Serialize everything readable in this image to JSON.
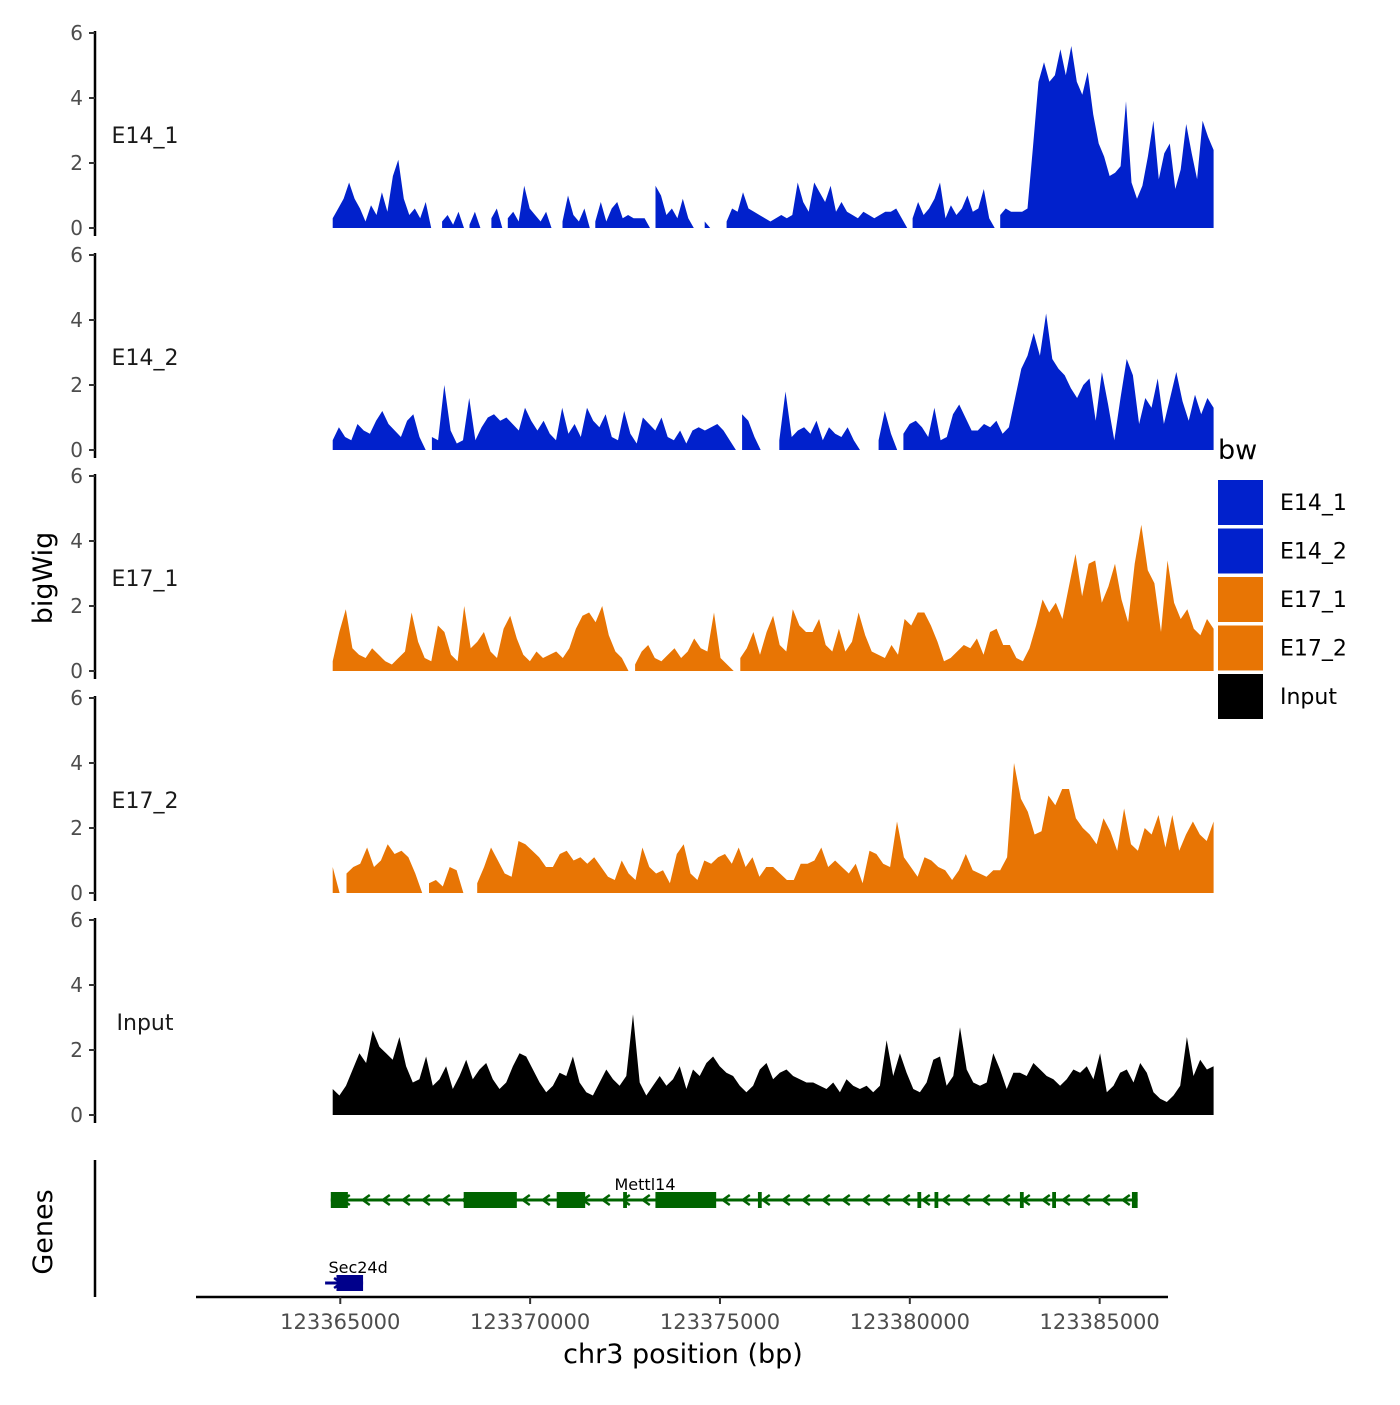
{
  "chart_data": {
    "type": "area",
    "title": "",
    "ylabel": "bigWig",
    "xlabel": "chr3 position (bp)",
    "ylim": [
      0,
      6
    ],
    "yticks": [
      0,
      2,
      4,
      6
    ],
    "xlim": [
      123361200,
      123386800
    ],
    "xticks": [
      123365000,
      123370000,
      123375000,
      123380000,
      123385000
    ],
    "xtick_labels": [
      "123365000",
      "123370000",
      "123375000",
      "123380000",
      "123385000"
    ],
    "signal_x_range": [
      123364800,
      123388000
    ],
    "legend": {
      "title": "bw",
      "placement": "right",
      "entries": [
        {
          "name": "E14_1",
          "color": "#0121CC"
        },
        {
          "name": "E14_2",
          "color": "#0121CC"
        },
        {
          "name": "E17_1",
          "color": "#E87504"
        },
        {
          "name": "E17_2",
          "color": "#E87504"
        },
        {
          "name": "Input",
          "color": "#000000"
        }
      ]
    },
    "series": [
      {
        "name": "E14_1",
        "color": "#0121CC",
        "values": [
          0.3,
          0.6,
          0.9,
          1.4,
          0.9,
          0.6,
          0.2,
          0.7,
          0.4,
          1.1,
          0.5,
          1.6,
          2.1,
          0.9,
          0.4,
          0.6,
          0.3,
          0.8,
          0,
          0,
          0.2,
          0.4,
          0.1,
          0.5,
          0,
          0.1,
          0.5,
          0,
          0,
          0.3,
          0.6,
          0,
          0.3,
          0.5,
          0.2,
          1.3,
          0.6,
          0.4,
          0.2,
          0.5,
          0,
          0,
          0.2,
          1,
          0.4,
          0.2,
          0.6,
          0,
          0.2,
          0.8,
          0.2,
          0.6,
          0.8,
          0.3,
          0.4,
          0.3,
          0.3,
          0.3,
          0,
          1.3,
          1,
          0.4,
          0.6,
          0.3,
          0.9,
          0.3,
          0,
          0,
          0.2,
          0,
          0,
          0,
          0.2,
          0.6,
          0.5,
          1.1,
          0.6,
          0.5,
          0.4,
          0.3,
          0.2,
          0.3,
          0.4,
          0.3,
          0.4,
          1.4,
          0.8,
          0.5,
          1.4,
          1.1,
          0.8,
          1.3,
          0.5,
          0.8,
          0.5,
          0.4,
          0.3,
          0.5,
          0.4,
          0.3,
          0.4,
          0.5,
          0.5,
          0.6,
          0.3,
          0,
          0.3,
          0.8,
          0.4,
          0.6,
          0.9,
          1.4,
          0.3,
          0.7,
          0.4,
          0.6,
          1,
          0.5,
          0.6,
          1.2,
          0.3,
          0,
          0.4,
          0.6,
          0.5,
          0.5,
          0.5,
          0.6,
          2.5,
          4.5,
          5.1,
          4.5,
          4.7,
          5.5,
          4.7,
          5.6,
          4.5,
          4.1,
          4.8,
          3.5,
          2.6,
          2.2,
          1.6,
          1.7,
          1.9,
          3.9,
          1.4,
          0.9,
          1.3,
          2.2,
          3.3,
          1.5,
          2.3,
          2.6,
          1.2,
          1.8,
          3.2,
          2.3,
          1.5,
          3.3,
          2.8,
          2.4
        ]
      },
      {
        "name": "E14_2",
        "color": "#0121CC",
        "values": [
          0.3,
          0.7,
          0.4,
          0.3,
          0.8,
          0.6,
          0.5,
          0.9,
          1.2,
          0.8,
          0.6,
          0.4,
          0.9,
          1.1,
          0.4,
          0,
          0.4,
          0.3,
          2,
          0.6,
          0.2,
          0.3,
          1.6,
          0.3,
          0.7,
          1,
          1.1,
          0.9,
          1,
          0.8,
          0.6,
          1.3,
          0.9,
          0.6,
          0.9,
          0.5,
          0.3,
          1.3,
          0.5,
          0.8,
          0.4,
          1.3,
          0.9,
          0.7,
          1.1,
          0.4,
          0.3,
          1.2,
          0.5,
          0.2,
          1,
          0.8,
          0.6,
          1,
          0.4,
          0.3,
          0.6,
          0.2,
          0.6,
          0.7,
          0.6,
          0.7,
          0.8,
          0.6,
          0.3,
          0,
          1.1,
          0.9,
          0.4,
          0,
          0,
          0,
          0.3,
          1.8,
          0.4,
          0.6,
          0.7,
          0.5,
          0.9,
          0.3,
          0.7,
          0.5,
          0.4,
          0.7,
          0.3,
          0,
          0,
          0,
          0.3,
          1.2,
          0.5,
          0,
          0.5,
          0.8,
          0.9,
          0.7,
          0.4,
          1.3,
          0.3,
          0.4,
          1.1,
          1.4,
          1,
          0.6,
          0.6,
          0.8,
          0.7,
          0.9,
          0.5,
          0.7,
          1.6,
          2.5,
          2.9,
          3.6,
          2.9,
          4.2,
          2.8,
          2.5,
          2.3,
          1.9,
          1.6,
          2,
          2.2,
          0.9,
          2.4,
          1.4,
          0.3,
          1.6,
          2.8,
          2.3,
          0.8,
          1.6,
          1.3,
          2.2,
          0.8,
          1.6,
          2.4,
          1.5,
          0.9,
          1.7,
          1.1,
          1.6,
          1.3
        ]
      },
      {
        "name": "E17_1",
        "color": "#E87504",
        "values": [
          0.3,
          1.2,
          1.9,
          0.7,
          0.5,
          0.4,
          0.7,
          0.5,
          0.3,
          0.2,
          0.4,
          0.6,
          1.8,
          0.9,
          0.4,
          0.3,
          1.4,
          1.2,
          0.5,
          0.3,
          2,
          0.7,
          0.9,
          1.2,
          0.6,
          0.4,
          1.3,
          1.7,
          1,
          0.5,
          0.3,
          0.6,
          0.4,
          0.5,
          0.6,
          0.4,
          0.7,
          1.3,
          1.7,
          1.8,
          1.5,
          2,
          1.1,
          0.6,
          0.4,
          0,
          0.2,
          0.6,
          0.8,
          0.4,
          0.3,
          0.5,
          0.7,
          0.4,
          0.6,
          1,
          0.7,
          0.6,
          1.8,
          0.4,
          0.2,
          0,
          0.4,
          0.7,
          1.2,
          0.5,
          1.2,
          1.7,
          0.8,
          0.6,
          1.9,
          1.4,
          1.2,
          1.2,
          1.6,
          0.8,
          0.6,
          1.3,
          0.6,
          0.9,
          1.8,
          1.1,
          0.6,
          0.5,
          0.4,
          0.8,
          0.5,
          1.6,
          1.4,
          1.8,
          1.8,
          1.4,
          0.9,
          0.3,
          0.4,
          0.6,
          0.8,
          0.7,
          1,
          0.5,
          1.2,
          1.3,
          0.8,
          0.8,
          0.4,
          0.3,
          0.7,
          1.4,
          2.2,
          1.8,
          2.1,
          1.6,
          2.6,
          3.6,
          2.3,
          3.3,
          3.4,
          2.1,
          2.6,
          3.3,
          2.2,
          1.5,
          3.3,
          4.5,
          3.1,
          2.7,
          1.2,
          3.4,
          2.1,
          1.6,
          1.9,
          1.3,
          1.1,
          1.6,
          1.3
        ]
      },
      {
        "name": "E17_2",
        "color": "#E87504",
        "values": [
          0.8,
          0,
          0.6,
          0.8,
          0.9,
          1.4,
          0.8,
          1,
          1.5,
          1.2,
          1.3,
          1.1,
          0.6,
          0,
          0.3,
          0.4,
          0.2,
          0.8,
          0.7,
          0,
          0,
          0.3,
          0.8,
          1.4,
          1,
          0.6,
          0.5,
          1.6,
          1.5,
          1.3,
          1.1,
          0.8,
          0.8,
          1.2,
          1.3,
          1,
          1.1,
          0.9,
          1.1,
          0.8,
          0.5,
          0.4,
          1,
          0.6,
          0.4,
          1.4,
          0.8,
          0.6,
          0.7,
          0.3,
          1.2,
          1.5,
          0.6,
          0.4,
          1,
          0.9,
          1.1,
          1.2,
          0.9,
          1.4,
          0.8,
          1.1,
          0.5,
          0.8,
          0.8,
          0.6,
          0.4,
          0.4,
          0.9,
          0.9,
          1,
          1.4,
          0.8,
          1,
          0.8,
          0.6,
          0.9,
          0.3,
          1.3,
          1.2,
          0.9,
          0.8,
          2.2,
          1.1,
          0.8,
          0.5,
          1.1,
          1,
          0.8,
          0.7,
          0.4,
          0.7,
          1.2,
          0.7,
          0.6,
          0.5,
          0.7,
          0.7,
          1.1,
          4,
          2.9,
          2.5,
          1.8,
          1.9,
          3,
          2.7,
          3.2,
          3.2,
          2.3,
          2,
          1.8,
          1.5,
          2.3,
          1.9,
          1.3,
          2.6,
          1.5,
          1.3,
          2,
          1.8,
          2.4,
          1.4,
          2.4,
          1.3,
          1.8,
          2.2,
          1.8,
          1.6,
          2.2
        ]
      },
      {
        "name": "Input",
        "color": "#000000",
        "values": [
          0.8,
          0.6,
          0.9,
          1.4,
          1.9,
          1.6,
          2.6,
          2.1,
          1.9,
          1.7,
          2.4,
          1.5,
          1,
          1.1,
          1.8,
          0.9,
          1.1,
          1.5,
          0.8,
          1.2,
          1.7,
          1.1,
          1.4,
          1.6,
          1.1,
          0.8,
          1,
          1.5,
          1.9,
          1.8,
          1.4,
          1,
          0.7,
          0.9,
          1.3,
          1.2,
          1.8,
          1,
          0.7,
          0.6,
          1,
          1.4,
          1.1,
          0.9,
          1.2,
          3.1,
          1,
          0.6,
          0.9,
          1.2,
          0.9,
          1.1,
          1.5,
          0.8,
          1.4,
          1.2,
          1.6,
          1.8,
          1.5,
          1.3,
          1.2,
          0.9,
          0.7,
          0.9,
          1.4,
          1.6,
          1.1,
          1.3,
          1.4,
          1.2,
          1.1,
          1,
          1,
          0.9,
          0.8,
          1,
          0.7,
          1.1,
          0.9,
          0.8,
          0.9,
          0.7,
          0.9,
          2.3,
          1.2,
          1.9,
          1.3,
          0.8,
          0.7,
          1,
          1.7,
          1.8,
          0.9,
          1.2,
          2.7,
          1.4,
          1,
          0.9,
          1,
          1.9,
          1.4,
          0.8,
          1.3,
          1.3,
          1.2,
          1.6,
          1.4,
          1.2,
          1.1,
          0.9,
          1.1,
          1.4,
          1.3,
          1.5,
          1.1,
          1.9,
          0.7,
          0.9,
          1.3,
          1.4,
          1,
          1.6,
          1.3,
          0.7,
          0.5,
          0.4,
          0.6,
          0.9,
          2.4,
          1.2,
          1.7,
          1.4,
          1.5
        ]
      }
    ],
    "genes_track": {
      "label": "Genes",
      "genes": [
        {
          "name": "Mettl14",
          "color": "#006400",
          "strand": "-",
          "start": 123364750,
          "end": 123386000,
          "exons": [
            [
              123364750,
              123365200
            ],
            [
              123368250,
              123369650
            ],
            [
              123370700,
              123371450
            ],
            [
              123372450,
              123372550
            ],
            [
              123373300,
              123374900
            ],
            [
              123376000,
              123376100
            ],
            [
              123380200,
              123380300
            ],
            [
              123380650,
              123380750
            ],
            [
              123382900,
              123383000
            ],
            [
              123383750,
              123383850
            ],
            [
              123385850,
              123386000
            ]
          ]
        },
        {
          "name": "Sec24d",
          "color": "#00008B",
          "strand": "+",
          "start": 123364600,
          "end": 123365600,
          "exons": [
            [
              123364900,
              123365600
            ]
          ]
        }
      ]
    }
  }
}
